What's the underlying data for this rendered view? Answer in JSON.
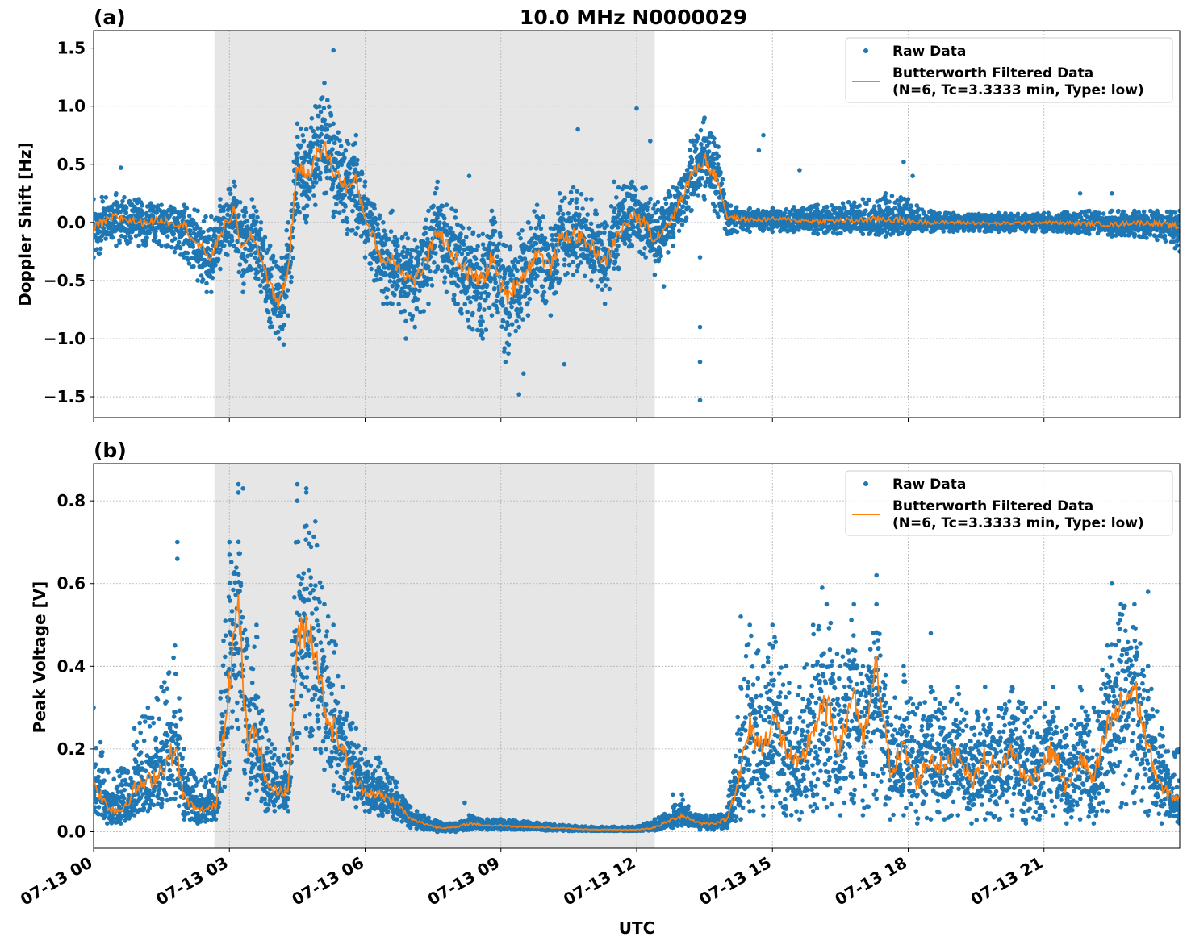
{
  "figure": {
    "title": "10.0 MHz N0000029",
    "xlabel": "UTC",
    "x_tick_labels": [
      "07-13 00",
      "07-13 03",
      "07-13 06",
      "07-13 09",
      "07-13 12",
      "07-13 15",
      "07-13 18",
      "07-13 21"
    ],
    "colors": {
      "raw": "#1f77b4",
      "filtered": "#ff7f0e",
      "shade": "#e6e6e6",
      "grid": "#b0b0b0"
    }
  },
  "chart_data": [
    {
      "panel_label": "(a)",
      "type": "scatter",
      "title": "10.0 MHz N0000029",
      "xlabel": "UTC",
      "ylabel": "Doppler Shift [Hz]",
      "x_unit": "hours since 07-13 00:00 UTC",
      "xlim": [
        0,
        24
      ],
      "ylim": [
        -1.68,
        1.65
      ],
      "y_ticks": [
        1.5,
        1.0,
        0.5,
        0.0,
        -0.5,
        -1.0,
        -1.5
      ],
      "y_tick_labels": [
        "1.5",
        "1.0",
        "0.5",
        "0.0",
        "−0.5",
        "−1.0",
        "−1.5"
      ],
      "shaded_region": [
        2.67,
        12.4
      ],
      "grid": true,
      "legend_position": "top-right",
      "legend": [
        {
          "marker": "dot",
          "label": "Raw Data"
        },
        {
          "marker": "line",
          "label": "Butterworth Filtered Data",
          "label2": "(N=6, Tc=3.3333 min, Type: low)"
        }
      ],
      "series": [
        {
          "name": "Butterworth Filtered Data",
          "x": [
            0,
            0.5,
            1.0,
            1.5,
            2.0,
            2.3,
            2.6,
            2.8,
            3.1,
            3.3,
            3.5,
            3.7,
            3.9,
            4.1,
            4.3,
            4.5,
            4.7,
            4.9,
            5.1,
            5.3,
            5.6,
            5.8,
            6.0,
            6.2,
            6.4,
            6.6,
            6.9,
            7.1,
            7.4,
            7.6,
            7.8,
            8.0,
            8.3,
            8.6,
            8.8,
            9.1,
            9.4,
            9.6,
            9.8,
            10.1,
            10.3,
            10.6,
            11.0,
            11.3,
            11.6,
            11.9,
            12.2,
            12.4,
            12.8,
            13.2,
            13.5,
            13.8,
            14.0,
            14.5,
            15.0,
            16.0,
            17.0,
            17.5,
            18.0,
            18.5,
            19.0,
            20.0,
            21.0,
            22.0,
            22.5,
            23.0,
            23.5,
            24.0
          ],
          "y": [
            -0.05,
            0.05,
            0.0,
            0.02,
            -0.02,
            -0.2,
            -0.3,
            -0.1,
            0.1,
            -0.25,
            -0.1,
            -0.3,
            -0.55,
            -0.7,
            -0.4,
            0.5,
            0.4,
            0.55,
            0.65,
            0.45,
            0.3,
            0.35,
            0.05,
            -0.15,
            -0.35,
            -0.3,
            -0.45,
            -0.5,
            -0.3,
            -0.05,
            -0.2,
            -0.3,
            -0.45,
            -0.5,
            -0.3,
            -0.65,
            -0.5,
            -0.4,
            -0.25,
            -0.4,
            -0.15,
            -0.1,
            -0.2,
            -0.35,
            -0.1,
            0.05,
            0.0,
            -0.15,
            0.05,
            0.4,
            0.55,
            0.35,
            0.05,
            0.02,
            0.03,
            0.01,
            0.02,
            0.03,
            0.01,
            0.0,
            0.0,
            -0.01,
            0.0,
            -0.01,
            -0.02,
            0.0,
            -0.01,
            -0.04
          ]
        },
        {
          "name": "Raw Data",
          "x": [
            0,
            0.5,
            1.0,
            1.5,
            2.0,
            2.3,
            2.6,
            2.8,
            3.1,
            3.3,
            3.5,
            3.7,
            3.9,
            4.1,
            4.3,
            4.5,
            4.7,
            4.9,
            5.1,
            5.3,
            5.6,
            5.8,
            6.0,
            6.2,
            6.4,
            6.6,
            6.9,
            7.1,
            7.4,
            7.6,
            7.8,
            8.0,
            8.3,
            8.6,
            8.8,
            9.1,
            9.4,
            9.6,
            9.8,
            10.1,
            10.3,
            10.6,
            11.0,
            11.3,
            11.6,
            11.9,
            12.2,
            12.4,
            12.8,
            13.2,
            13.5,
            13.8,
            14.0,
            14.5,
            15.0,
            16.0,
            17.0,
            17.5,
            18.0,
            18.5,
            19.0,
            20.0,
            21.0,
            22.0,
            22.5,
            23.0,
            23.5,
            24.0
          ],
          "y_min": [
            -0.3,
            -0.2,
            -0.2,
            -0.2,
            -0.3,
            -0.5,
            -0.6,
            -0.4,
            -0.2,
            -0.6,
            -0.4,
            -0.6,
            -0.9,
            -1.0,
            -0.8,
            0.1,
            0.0,
            0.15,
            0.25,
            0.05,
            -0.1,
            -0.1,
            -0.3,
            -0.5,
            -0.7,
            -0.7,
            -0.85,
            -0.9,
            -0.7,
            -0.4,
            -0.6,
            -0.7,
            -0.9,
            -1.0,
            -0.8,
            -1.2,
            -0.9,
            -0.8,
            -0.6,
            -0.8,
            -0.5,
            -0.45,
            -0.5,
            -0.7,
            -0.4,
            -0.2,
            -0.3,
            -0.45,
            -0.2,
            0.1,
            0.2,
            0.05,
            -0.1,
            -0.08,
            -0.08,
            -0.1,
            -0.1,
            -0.12,
            -0.1,
            -0.08,
            -0.08,
            -0.08,
            -0.08,
            -0.1,
            -0.12,
            -0.12,
            -0.15,
            -0.25
          ],
          "y_max": [
            0.2,
            0.25,
            0.2,
            0.15,
            0.15,
            0.1,
            0.05,
            0.2,
            0.35,
            0.1,
            0.2,
            0.0,
            -0.2,
            -0.4,
            0.0,
            0.85,
            0.8,
            1.0,
            1.2,
            0.85,
            0.7,
            0.75,
            0.35,
            0.15,
            0.0,
            0.1,
            -0.1,
            -0.15,
            0.1,
            0.35,
            0.15,
            0.1,
            -0.05,
            -0.1,
            0.1,
            -0.2,
            -0.1,
            0.0,
            0.15,
            -0.05,
            0.25,
            0.3,
            0.2,
            0.0,
            0.3,
            0.35,
            0.3,
            0.15,
            0.3,
            0.7,
            0.9,
            0.65,
            0.15,
            0.12,
            0.12,
            0.15,
            0.2,
            0.25,
            0.2,
            0.1,
            0.08,
            0.08,
            0.08,
            0.1,
            0.1,
            0.1,
            0.1,
            0.1
          ],
          "outliers": [
            [
              0.6,
              0.47
            ],
            [
              1.6,
              -0.2
            ],
            [
              2.5,
              -0.6
            ],
            [
              4.2,
              -1.05
            ],
            [
              5.3,
              1.48
            ],
            [
              6.9,
              -1.0
            ],
            [
              8.3,
              0.4
            ],
            [
              9.4,
              -1.48
            ],
            [
              9.5,
              -1.3
            ],
            [
              10.4,
              -1.22
            ],
            [
              10.7,
              0.8
            ],
            [
              11.5,
              0.35
            ],
            [
              12.0,
              0.98
            ],
            [
              12.3,
              0.7
            ],
            [
              12.6,
              -0.55
            ],
            [
              13.4,
              -1.53
            ],
            [
              13.4,
              -1.2
            ],
            [
              13.4,
              -0.9
            ],
            [
              13.4,
              -0.3
            ],
            [
              14.7,
              0.62
            ],
            [
              14.8,
              0.75
            ],
            [
              15.6,
              0.45
            ],
            [
              17.9,
              0.52
            ],
            [
              18.1,
              0.4
            ],
            [
              21.8,
              0.25
            ],
            [
              22.5,
              0.25
            ]
          ]
        }
      ]
    },
    {
      "panel_label": "(b)",
      "type": "scatter",
      "xlabel": "UTC",
      "ylabel": "Peak Voltage [V]",
      "x_unit": "hours since 07-13 00:00 UTC",
      "xlim": [
        0,
        24
      ],
      "ylim": [
        -0.04,
        0.89
      ],
      "y_ticks": [
        0.0,
        0.2,
        0.4,
        0.6,
        0.8
      ],
      "y_tick_labels": [
        "0.0",
        "0.2",
        "0.4",
        "0.6",
        "0.8"
      ],
      "shaded_region": [
        2.67,
        12.4
      ],
      "grid": true,
      "legend_position": "top-right",
      "legend": [
        {
          "marker": "dot",
          "label": "Raw Data"
        },
        {
          "marker": "line",
          "label": "Butterworth Filtered Data",
          "label2": "(N=6, Tc=3.3333 min, Type: low)"
        }
      ],
      "series": [
        {
          "name": "Butterworth Filtered Data",
          "x": [
            0,
            0.3,
            0.6,
            0.9,
            1.2,
            1.5,
            1.8,
            2.0,
            2.3,
            2.7,
            3.0,
            3.2,
            3.4,
            3.6,
            3.8,
            4.0,
            4.3,
            4.5,
            4.7,
            4.9,
            5.1,
            5.3,
            5.5,
            5.8,
            6.0,
            6.3,
            6.7,
            7.0,
            7.3,
            7.6,
            8.0,
            8.3,
            8.7,
            9.0,
            9.5,
            10.0,
            10.5,
            11.0,
            11.5,
            12.0,
            12.4,
            12.8,
            13.0,
            13.4,
            13.7,
            14.0,
            14.3,
            14.5,
            14.8,
            15.0,
            15.3,
            15.6,
            15.9,
            16.2,
            16.5,
            16.8,
            17.0,
            17.3,
            17.6,
            17.9,
            18.2,
            18.5,
            18.8,
            19.1,
            19.4,
            19.7,
            20.0,
            20.3,
            20.6,
            20.9,
            21.2,
            21.5,
            21.8,
            22.1,
            22.4,
            22.7,
            23.0,
            23.3,
            23.6,
            24.0
          ],
          "y": [
            0.12,
            0.06,
            0.05,
            0.1,
            0.12,
            0.15,
            0.2,
            0.08,
            0.05,
            0.06,
            0.38,
            0.55,
            0.2,
            0.25,
            0.12,
            0.1,
            0.1,
            0.45,
            0.5,
            0.45,
            0.3,
            0.25,
            0.2,
            0.12,
            0.1,
            0.09,
            0.07,
            0.03,
            0.02,
            0.01,
            0.01,
            0.02,
            0.015,
            0.015,
            0.012,
            0.01,
            0.008,
            0.005,
            0.005,
            0.005,
            0.01,
            0.03,
            0.04,
            0.02,
            0.02,
            0.03,
            0.15,
            0.25,
            0.2,
            0.28,
            0.2,
            0.15,
            0.25,
            0.3,
            0.2,
            0.35,
            0.2,
            0.4,
            0.15,
            0.2,
            0.12,
            0.18,
            0.15,
            0.2,
            0.12,
            0.18,
            0.15,
            0.2,
            0.12,
            0.15,
            0.2,
            0.1,
            0.18,
            0.12,
            0.25,
            0.3,
            0.35,
            0.2,
            0.1,
            0.08
          ]
        },
        {
          "name": "Raw Data",
          "x": [
            0,
            0.3,
            0.6,
            0.9,
            1.2,
            1.5,
            1.8,
            2.0,
            2.3,
            2.7,
            3.0,
            3.2,
            3.4,
            3.6,
            3.8,
            4.0,
            4.3,
            4.5,
            4.7,
            4.9,
            5.1,
            5.3,
            5.5,
            5.8,
            6.0,
            6.3,
            6.7,
            7.0,
            7.3,
            7.6,
            8.0,
            8.3,
            8.7,
            9.0,
            9.5,
            10.0,
            10.5,
            11.0,
            11.5,
            12.0,
            12.4,
            12.8,
            13.0,
            13.4,
            13.7,
            14.0,
            14.3,
            14.5,
            14.8,
            15.0,
            15.3,
            15.6,
            15.9,
            16.2,
            16.5,
            16.8,
            17.0,
            17.3,
            17.6,
            17.9,
            18.2,
            18.5,
            18.8,
            19.1,
            19.4,
            19.7,
            20.0,
            20.3,
            20.6,
            20.9,
            21.2,
            21.5,
            21.8,
            22.1,
            22.4,
            22.7,
            23.0,
            23.3,
            23.6,
            24.0
          ],
          "y_min": [
            0.05,
            0.02,
            0.02,
            0.04,
            0.05,
            0.06,
            0.08,
            0.03,
            0.02,
            0.03,
            0.15,
            0.25,
            0.08,
            0.1,
            0.05,
            0.05,
            0.05,
            0.2,
            0.25,
            0.2,
            0.15,
            0.1,
            0.08,
            0.06,
            0.05,
            0.04,
            0.03,
            0.01,
            0.005,
            0.0,
            0.0,
            0.005,
            0.005,
            0.005,
            0.005,
            0.003,
            0.002,
            0.002,
            0.002,
            0.002,
            0.003,
            0.01,
            0.015,
            0.005,
            0.005,
            0.01,
            0.03,
            0.05,
            0.04,
            0.06,
            0.04,
            0.03,
            0.05,
            0.06,
            0.04,
            0.07,
            0.04,
            0.08,
            0.03,
            0.04,
            0.02,
            0.03,
            0.03,
            0.04,
            0.02,
            0.03,
            0.03,
            0.04,
            0.02,
            0.03,
            0.04,
            0.02,
            0.03,
            0.02,
            0.05,
            0.06,
            0.07,
            0.04,
            0.02,
            0.02
          ],
          "y_max": [
            0.3,
            0.15,
            0.15,
            0.25,
            0.3,
            0.35,
            0.45,
            0.2,
            0.12,
            0.15,
            0.7,
            0.82,
            0.45,
            0.5,
            0.25,
            0.2,
            0.2,
            0.8,
            0.82,
            0.75,
            0.55,
            0.5,
            0.35,
            0.25,
            0.2,
            0.18,
            0.12,
            0.06,
            0.04,
            0.025,
            0.02,
            0.04,
            0.03,
            0.03,
            0.025,
            0.02,
            0.015,
            0.012,
            0.012,
            0.012,
            0.03,
            0.06,
            0.09,
            0.04,
            0.04,
            0.06,
            0.35,
            0.5,
            0.4,
            0.5,
            0.4,
            0.35,
            0.5,
            0.55,
            0.4,
            0.55,
            0.4,
            0.55,
            0.3,
            0.4,
            0.3,
            0.35,
            0.3,
            0.35,
            0.25,
            0.35,
            0.3,
            0.35,
            0.3,
            0.3,
            0.35,
            0.25,
            0.35,
            0.3,
            0.45,
            0.55,
            0.55,
            0.4,
            0.25,
            0.2
          ],
          "outliers": [
            [
              1.85,
              0.7
            ],
            [
              1.85,
              0.66
            ],
            [
              3.2,
              0.84
            ],
            [
              3.3,
              0.83
            ],
            [
              4.5,
              0.84
            ],
            [
              4.7,
              0.83
            ],
            [
              8.2,
              0.07
            ],
            [
              12.8,
              0.09
            ],
            [
              14.3,
              0.52
            ],
            [
              16.1,
              0.59
            ],
            [
              17.3,
              0.62
            ],
            [
              18.5,
              0.48
            ],
            [
              22.5,
              0.6
            ],
            [
              23.3,
              0.58
            ]
          ]
        }
      ]
    }
  ]
}
